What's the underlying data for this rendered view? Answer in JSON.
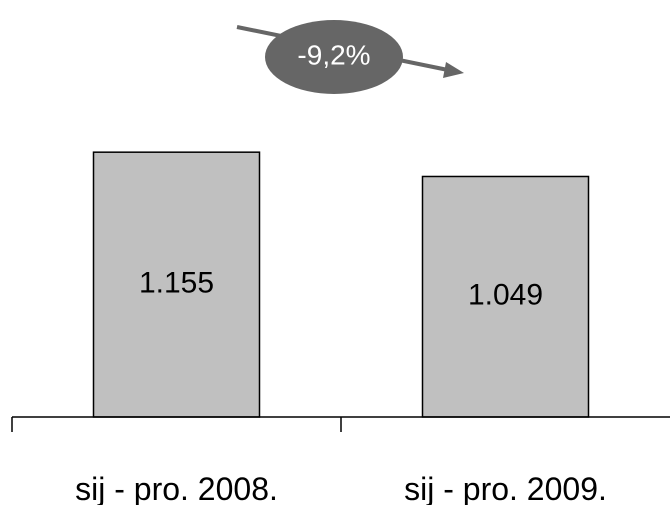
{
  "chart_data": {
    "type": "bar",
    "categories": [
      "sij - pro. 2008.",
      "sij - pro. 2009."
    ],
    "values": [
      1155,
      1049
    ],
    "value_labels": [
      "1.155",
      "1.049"
    ],
    "ylim": [
      0,
      1400
    ],
    "grid": false,
    "bar_color": "#c0c0c0",
    "change_annotation": "-9,2%",
    "change_badge_color": "#666666"
  }
}
